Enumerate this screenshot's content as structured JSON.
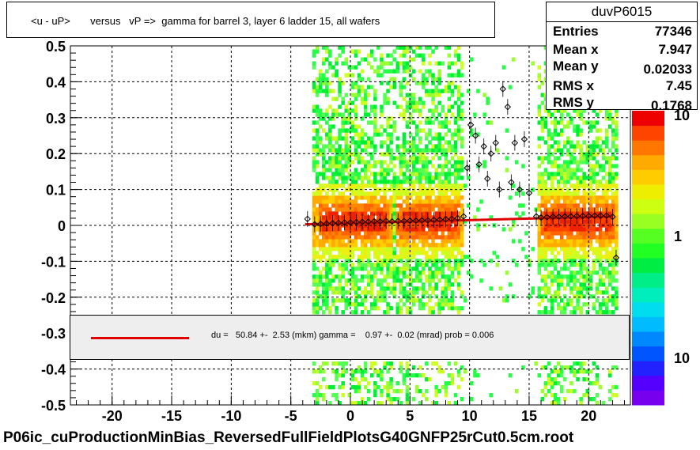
{
  "title": "<u - uP>       versus   vP =>  gamma for barrel 3, layer 6 ladder 15, all wafers",
  "stats": {
    "name": "duvP6015",
    "rows": [
      {
        "label": "Entries",
        "value": "77346"
      },
      {
        "label": "Mean x",
        "value": "7.947"
      },
      {
        "label": "Mean y",
        "value": "0.02033"
      },
      {
        "label": "RMS x",
        "value": "7.45"
      },
      {
        "label": "RMS y",
        "value": "0.1768"
      }
    ]
  },
  "fit_text": "du =   50.84 +-  2.53 (mkm) gamma =    0.97 +-  0.02 (mrad) prob = 0.006",
  "footer": "P06ic_cuProductionMinBias_ReversedFullFieldPlotsG40GNFP25rCut0.5cm.root",
  "colors": {
    "fit_line": "#e00000"
  },
  "chart_data": {
    "type": "heatmap",
    "x_ticks": [
      "-20",
      "-15",
      "-10",
      "-5",
      "0",
      "5",
      "10",
      "15",
      "20"
    ],
    "y_ticks": [
      "-0.5",
      "-0.4",
      "-0.3",
      "-0.2",
      "-0.1",
      "0",
      "0.1",
      "0.2",
      "0.3",
      "0.4",
      "0.5"
    ],
    "xlim": [
      -23.5,
      23.5
    ],
    "ylim": [
      -0.5,
      0.5
    ],
    "grid": true,
    "z_scale": "log",
    "z_ticks": [
      "10",
      "1",
      "10"
    ],
    "fill_x_range": [
      -3.2,
      22.3
    ],
    "hot_bands": [
      [
        -3.2,
        3.4
      ],
      [
        3.6,
        9.4
      ],
      [
        15.6,
        22.3
      ]
    ],
    "gaps": [
      [
        9.4,
        15.6
      ]
    ],
    "profile_points": [
      {
        "x": -3.6,
        "y": 0.018
      },
      {
        "x": -3.0,
        "y": 0.003
      },
      {
        "x": -2.5,
        "y": 0.004
      },
      {
        "x": -2.0,
        "y": 0.005
      },
      {
        "x": -1.5,
        "y": 0.006
      },
      {
        "x": -1.0,
        "y": 0.007
      },
      {
        "x": -0.5,
        "y": 0.008
      },
      {
        "x": 0.0,
        "y": 0.008
      },
      {
        "x": 0.5,
        "y": 0.009
      },
      {
        "x": 1.0,
        "y": 0.01
      },
      {
        "x": 1.5,
        "y": 0.01
      },
      {
        "x": 2.0,
        "y": 0.011
      },
      {
        "x": 2.5,
        "y": 0.011
      },
      {
        "x": 3.0,
        "y": 0.012
      },
      {
        "x": 3.5,
        "y": 0.011
      },
      {
        "x": 4.0,
        "y": 0.012
      },
      {
        "x": 4.5,
        "y": 0.012
      },
      {
        "x": 5.0,
        "y": 0.013
      },
      {
        "x": 5.5,
        "y": 0.013
      },
      {
        "x": 6.0,
        "y": 0.014
      },
      {
        "x": 6.5,
        "y": 0.014
      },
      {
        "x": 7.0,
        "y": 0.015
      },
      {
        "x": 7.5,
        "y": 0.016
      },
      {
        "x": 8.0,
        "y": 0.017
      },
      {
        "x": 8.5,
        "y": 0.018
      },
      {
        "x": 9.0,
        "y": 0.02
      },
      {
        "x": 9.5,
        "y": 0.025
      },
      {
        "x": 9.8,
        "y": 0.16
      },
      {
        "x": 10.1,
        "y": 0.28
      },
      {
        "x": 10.5,
        "y": 0.25
      },
      {
        "x": 10.8,
        "y": 0.17
      },
      {
        "x": 11.2,
        "y": 0.22
      },
      {
        "x": 11.5,
        "y": 0.13
      },
      {
        "x": 11.8,
        "y": 0.2
      },
      {
        "x": 12.2,
        "y": 0.23
      },
      {
        "x": 12.5,
        "y": 0.1
      },
      {
        "x": 12.8,
        "y": 0.38
      },
      {
        "x": 13.2,
        "y": 0.33
      },
      {
        "x": 13.5,
        "y": 0.12
      },
      {
        "x": 13.8,
        "y": 0.23
      },
      {
        "x": 14.2,
        "y": 0.1
      },
      {
        "x": 14.6,
        "y": 0.24
      },
      {
        "x": 15.0,
        "y": 0.09
      },
      {
        "x": 15.6,
        "y": 0.025
      },
      {
        "x": 16.0,
        "y": 0.022
      },
      {
        "x": 16.5,
        "y": 0.023
      },
      {
        "x": 17.0,
        "y": 0.024
      },
      {
        "x": 17.5,
        "y": 0.024
      },
      {
        "x": 18.0,
        "y": 0.025
      },
      {
        "x": 18.5,
        "y": 0.025
      },
      {
        "x": 19.0,
        "y": 0.026
      },
      {
        "x": 19.5,
        "y": 0.026
      },
      {
        "x": 20.0,
        "y": 0.026
      },
      {
        "x": 20.5,
        "y": 0.027
      },
      {
        "x": 21.0,
        "y": 0.027
      },
      {
        "x": 21.5,
        "y": 0.027
      },
      {
        "x": 22.0,
        "y": 0.024
      },
      {
        "x": 22.3,
        "y": -0.09
      }
    ],
    "fit_line": {
      "x0": -3.8,
      "y0": 0.003,
      "x1": 22.0,
      "y1": 0.025
    }
  }
}
